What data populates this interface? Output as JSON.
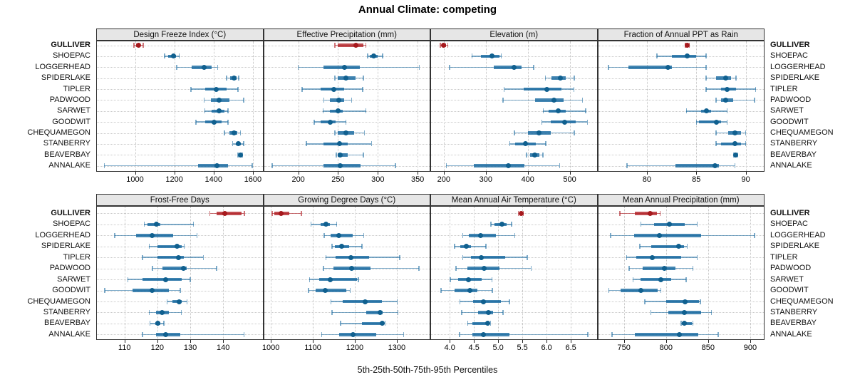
{
  "title": "Annual Climate: competing",
  "caption": "5th-25th-50th-75th-95th Percentiles",
  "sites": [
    "GULLIVER",
    "SHOEPAC",
    "LOGGERHEAD",
    "SPIDERLAKE",
    "TIPLER",
    "PADWOOD",
    "SARWET",
    "GOODWIT",
    "CHEQUAMEGON",
    "STANBERRY",
    "BEAVERBAY",
    "ANNALAKE"
  ],
  "highlight_site": "GULLIVER",
  "percentile_order": [
    "p5",
    "p25",
    "p50",
    "p75",
    "p95"
  ],
  "colors": {
    "highlight_dot": "#a6191d",
    "highlight_band": "rgba(178,32,38,0.8)",
    "highlight_line": "rgba(178,32,38,0.62)",
    "normal_dot": "#10608f",
    "normal_band": "rgba(21,104,159,0.8)",
    "normal_line": "rgba(21,104,159,0.55)",
    "strip_bg": "#e6e6e6",
    "grid": "#c9c9c9",
    "border": "#333333"
  },
  "chart_data": [
    {
      "type": "percentile-range",
      "panel": "Design Freeze Index (°C)",
      "row": "top",
      "col": 0,
      "xlim": [
        802,
        1653
      ],
      "xticks": [
        1000,
        1200,
        1400,
        1600
      ],
      "xtick_labels": [
        "1000",
        "1200",
        "1400",
        "1600"
      ],
      "values": [
        [
          995,
          1005,
          1018,
          1028,
          1042
        ],
        [
          1150,
          1170,
          1195,
          1210,
          1225
        ],
        [
          1212,
          1290,
          1350,
          1390,
          1420
        ],
        [
          1467,
          1485,
          1503,
          1517,
          1528
        ],
        [
          1285,
          1357,
          1412,
          1467,
          1525
        ],
        [
          1352,
          1388,
          1428,
          1479,
          1554
        ],
        [
          1355,
          1390,
          1427,
          1455,
          1473
        ],
        [
          1310,
          1357,
          1403,
          1442,
          1473
        ],
        [
          1455,
          1480,
          1503,
          1521,
          1537
        ],
        [
          1497,
          1515,
          1527,
          1540,
          1554
        ],
        [
          1525,
          1531,
          1536,
          1541,
          1546
        ],
        [
          843,
          1321,
          1418,
          1475,
          1597
        ]
      ]
    },
    {
      "type": "percentile-range",
      "panel": "Effective Precipitation (mm)",
      "row": "top",
      "col": 1,
      "xlim": [
        156,
        366
      ],
      "xticks": [
        200,
        250,
        300,
        350
      ],
      "xtick_labels": [
        "200",
        "250",
        "300",
        "350"
      ],
      "values": [
        [
          246,
          250,
          272,
          282,
          285
        ],
        [
          287,
          290,
          295,
          300,
          306
        ],
        [
          200,
          232,
          258,
          277,
          352
        ],
        [
          246,
          250,
          260,
          272,
          282
        ],
        [
          205,
          228,
          245,
          258,
          281
        ],
        [
          232,
          240,
          251,
          258,
          267
        ],
        [
          231,
          240,
          250,
          256,
          285
        ],
        [
          220,
          228,
          240,
          247,
          260
        ],
        [
          246,
          250,
          260,
          270,
          283
        ],
        [
          210,
          232,
          252,
          262,
          292
        ],
        [
          248,
          250,
          253,
          262,
          282
        ],
        [
          167,
          232,
          253,
          278,
          322
        ]
      ]
    },
    {
      "type": "percentile-range",
      "panel": "Elevation (m)",
      "row": "top",
      "col": 2,
      "xlim": [
        168,
        566
      ],
      "xticks": [
        200,
        300,
        400,
        500
      ],
      "xtick_labels": [
        "200",
        "300",
        "400",
        "500"
      ],
      "values": [
        [
          192,
          196,
          200,
          205,
          210
        ],
        [
          267,
          288,
          314,
          333,
          337
        ],
        [
          214,
          319,
          368,
          386,
          414
        ],
        [
          442,
          456,
          477,
          490,
          511
        ],
        [
          344,
          390,
          446,
          480,
          510
        ],
        [
          341,
          417,
          463,
          485,
          530
        ],
        [
          437,
          450,
          472,
          490,
          538
        ],
        [
          434,
          455,
          488,
          515,
          542
        ],
        [
          368,
          400,
          426,
          455,
          511
        ],
        [
          357,
          370,
          395,
          420,
          443
        ],
        [
          397,
          405,
          416,
          428,
          436
        ],
        [
          206,
          271,
          353,
          392,
          476
        ]
      ]
    },
    {
      "type": "percentile-range",
      "panel": "Fraction of Annual PPT as Rain",
      "row": "top",
      "col": 3,
      "xlim": [
        75,
        91.9
      ],
      "xticks": [
        80,
        85,
        90
      ],
      "xtick_labels": [
        "80",
        "85",
        "90"
      ],
      "values": [
        [
          83.9,
          84.0,
          84.1,
          84.2,
          84.3
        ],
        [
          81.0,
          82.5,
          84.1,
          85.0,
          86.0
        ],
        [
          76.1,
          78.1,
          82.1,
          82.5,
          86.0
        ],
        [
          86.0,
          87.0,
          88.0,
          88.5,
          89.0
        ],
        [
          86.0,
          87.5,
          88.1,
          89.0,
          91.0
        ],
        [
          87.0,
          87.5,
          88.0,
          88.7,
          90.9
        ],
        [
          84.0,
          85.5,
          86.0,
          86.5,
          88.1
        ],
        [
          85.0,
          85.3,
          87.0,
          87.5,
          88.1
        ],
        [
          87.0,
          88.2,
          88.9,
          89.5,
          90.0
        ],
        [
          87.0,
          87.5,
          88.9,
          89.5,
          90.0
        ],
        [
          88.8,
          88.9,
          89.0,
          89.1,
          89.2
        ],
        [
          78.0,
          82.9,
          86.9,
          87.3,
          88.9
        ]
      ]
    },
    {
      "type": "percentile-range",
      "panel": "Frost-Free Days",
      "row": "bottom",
      "col": 0,
      "xlim": [
        101.4,
        152.2
      ],
      "xticks": [
        110,
        120,
        130,
        140
      ],
      "xtick_labels": [
        "110",
        "120",
        "130",
        "140"
      ],
      "values": [
        [
          136,
          138,
          140.5,
          145.5,
          146.5
        ],
        [
          116,
          117,
          119.7,
          121,
          131
        ],
        [
          107,
          113.5,
          118.4,
          124.8,
          132
        ],
        [
          117.5,
          120,
          125.9,
          127.3,
          128.2
        ],
        [
          115.5,
          120,
          126.5,
          128,
          134
        ],
        [
          118.5,
          121.5,
          128,
          129,
          138
        ],
        [
          111,
          115.5,
          122.5,
          127.3,
          130
        ],
        [
          104,
          112.5,
          118.3,
          123.4,
          127
        ],
        [
          123,
          124.5,
          126.7,
          127.5,
          129
        ],
        [
          117.5,
          119.5,
          121.5,
          123.5,
          127.3
        ],
        [
          117.8,
          119.3,
          120.2,
          121,
          122
        ],
        [
          115.5,
          119.5,
          122.5,
          127,
          146.4
        ]
      ]
    },
    {
      "type": "percentile-range",
      "panel": "Growing Degree Days (°C)",
      "row": "bottom",
      "col": 1,
      "xlim": [
        982,
        1380
      ],
      "xticks": [
        1000,
        1100,
        1200,
        1300
      ],
      "xtick_labels": [
        "1000",
        "1100",
        "1200",
        "1300"
      ],
      "values": [
        [
          1003,
          1008,
          1024,
          1044,
          1073
        ],
        [
          1096,
          1118,
          1132,
          1140,
          1157
        ],
        [
          1127,
          1143,
          1162,
          1195,
          1221
        ],
        [
          1146,
          1152,
          1168,
          1186,
          1217
        ],
        [
          1131,
          1155,
          1191,
          1234,
          1307
        ],
        [
          1125,
          1149,
          1193,
          1237,
          1353
        ],
        [
          1092,
          1115,
          1142,
          1205,
          1209
        ],
        [
          1090,
          1107,
          1129,
          1180,
          1189
        ],
        [
          1143,
          1172,
          1225,
          1265,
          1301
        ],
        [
          1146,
          1228,
          1261,
          1267,
          1303
        ],
        [
          1166,
          1217,
          1266,
          1269,
          1272
        ],
        [
          1121,
          1163,
          1196,
          1251,
          1316
        ]
      ]
    },
    {
      "type": "percentile-range",
      "panel": "Mean Annual Air Temperature (°C)",
      "row": "bottom",
      "col": 2,
      "xlim": [
        3.6,
        7.05
      ],
      "xticks": [
        4.0,
        4.5,
        5.0,
        5.5,
        6.0,
        6.5
      ],
      "xtick_labels": [
        "4.0",
        "4.5",
        "5.0",
        "5.5",
        "6.0",
        "6.5"
      ],
      "values": [
        [
          5.42,
          5.45,
          5.47,
          5.49,
          5.52
        ],
        [
          4.85,
          4.93,
          5.08,
          5.18,
          5.28
        ],
        [
          4.27,
          4.39,
          4.64,
          4.96,
          5.34
        ],
        [
          4.1,
          4.22,
          4.34,
          4.44,
          4.75
        ],
        [
          4.27,
          4.44,
          4.65,
          5.15,
          5.6
        ],
        [
          4.13,
          4.37,
          4.71,
          5.03,
          5.68
        ],
        [
          4.01,
          4.17,
          4.38,
          4.66,
          4.87
        ],
        [
          3.82,
          4.1,
          4.41,
          4.57,
          4.88
        ],
        [
          4.21,
          4.49,
          4.7,
          5.05,
          5.23
        ],
        [
          4.25,
          4.59,
          4.8,
          4.9,
          5.1
        ],
        [
          4.37,
          4.47,
          4.78,
          4.81,
          4.84
        ],
        [
          4.2,
          4.47,
          4.7,
          5.24,
          6.85
        ]
      ]
    },
    {
      "type": "percentile-range",
      "panel": "Mean Annual Precipitation (mm)",
      "row": "bottom",
      "col": 3,
      "xlim": [
        718.5,
        917
      ],
      "xticks": [
        750,
        800,
        850,
        900
      ],
      "xtick_labels": [
        "750",
        "800",
        "850",
        "900"
      ],
      "values": [
        [
          745,
          763,
          781,
          789,
          793
        ],
        [
          770,
          786,
          804,
          822,
          837
        ],
        [
          734,
          762,
          792,
          842,
          905
        ],
        [
          769,
          782,
          815,
          821,
          825
        ],
        [
          753,
          765,
          784,
          818,
          837
        ],
        [
          756,
          772,
          798,
          811,
          832
        ],
        [
          761,
          770,
          794,
          806,
          824
        ],
        [
          732,
          746,
          770,
          790,
          794
        ],
        [
          775,
          800,
          823,
          839,
          841
        ],
        [
          782,
          803,
          822,
          842,
          854
        ],
        [
          818,
          819,
          822,
          831,
          832
        ],
        [
          736,
          763,
          816,
          838,
          862
        ]
      ]
    }
  ]
}
